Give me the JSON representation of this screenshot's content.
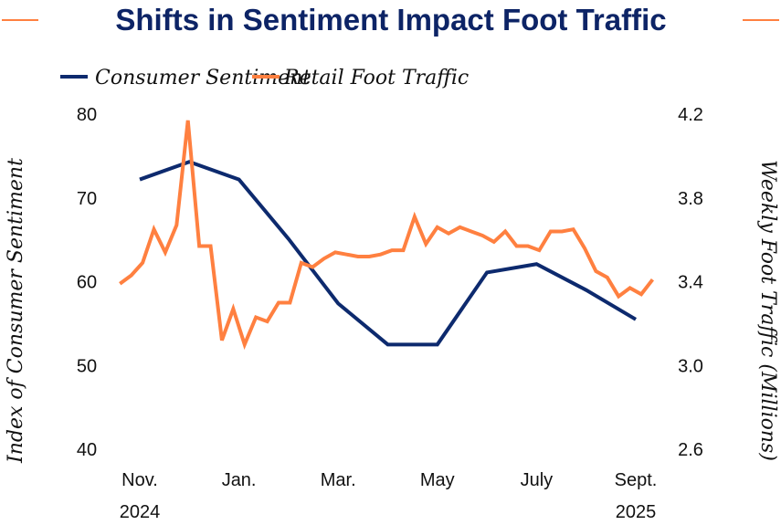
{
  "title": "Shifts in Sentiment Impact Foot Traffic",
  "colors": {
    "sentiment": "#0d2a6e",
    "traffic": "#ff8040",
    "title": "#0d2466"
  },
  "chart_data": {
    "type": "line",
    "title": "Shifts in Sentiment Impact Foot Traffic",
    "legend": [
      "Consumer Sentiment",
      "Retail Foot Traffic"
    ],
    "legend_placement": "top-center",
    "ylabel_left": "Index of Consumer Sentiment",
    "ylabel_right": "Weekly Foot Traffic (Millions)",
    "ylim_left": [
      40,
      80
    ],
    "ylim_right": [
      2.6,
      4.2
    ],
    "yticks_left": [
      "80",
      "70",
      "60",
      "50",
      "40"
    ],
    "yticks_right": [
      "4.2",
      "3.8",
      "3.4",
      "3.0",
      "2.6"
    ],
    "xticks": [
      "Nov.",
      "Jan.",
      "Mar.",
      "May",
      "July",
      "Sept."
    ],
    "xtick_months": [
      0,
      2,
      4,
      6,
      8,
      10
    ],
    "years": [
      "2024",
      "2025"
    ],
    "grid": false,
    "series": [
      {
        "name": "Consumer Sentiment",
        "axis": "left",
        "months": [
          0,
          1,
          2,
          3,
          4,
          5,
          6,
          7,
          8,
          9,
          10
        ],
        "values": [
          72.2,
          74.3,
          72.2,
          65.1,
          57.4,
          52.5,
          52.5,
          61.1,
          62.1,
          59.0,
          55.5
        ]
      },
      {
        "name": "Retail Foot Traffic",
        "axis": "right",
        "start_month": -0.4,
        "step_months": 0.2285,
        "values": [
          3.39,
          3.43,
          3.49,
          3.65,
          3.54,
          3.67,
          4.17,
          3.57,
          3.57,
          3.12,
          3.27,
          3.1,
          3.23,
          3.21,
          3.3,
          3.3,
          3.49,
          3.47,
          3.51,
          3.54,
          3.53,
          3.52,
          3.52,
          3.53,
          3.55,
          3.55,
          3.71,
          3.58,
          3.66,
          3.63,
          3.66,
          3.64,
          3.62,
          3.59,
          3.64,
          3.57,
          3.57,
          3.55,
          3.64,
          3.64,
          3.65,
          3.56,
          3.45,
          3.42,
          3.33,
          3.37,
          3.34,
          3.41
        ]
      }
    ]
  }
}
